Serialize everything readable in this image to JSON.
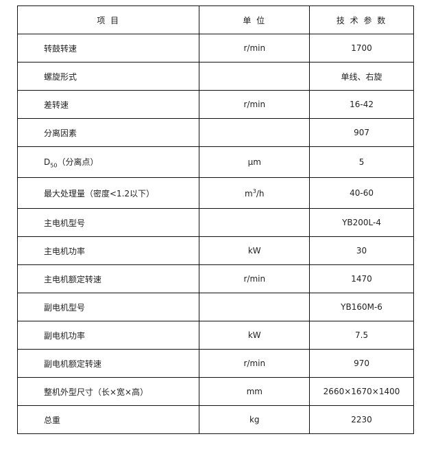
{
  "header": {
    "item": "项    目",
    "unit": "单  位",
    "param": "技 术  参 数"
  },
  "rows": [
    {
      "item": "转鼓转速",
      "unit": "r/min",
      "value": "1700"
    },
    {
      "item": "螺旋形式",
      "unit": "",
      "value": "单线、右旋"
    },
    {
      "item": "差转速",
      "unit": "r/min",
      "value": "16-42"
    },
    {
      "item": "分离因素",
      "unit": "",
      "value": "907"
    },
    {
      "item_main": "D",
      "item_sub": "50",
      "item_rest": "（分离点）",
      "unit": "μm",
      "value": "5"
    },
    {
      "item": "最大处理量（密度<1.2以下）",
      "unit_main": "m",
      "unit_sup": "3",
      "unit_rest": "/h",
      "value": "40-60"
    },
    {
      "item": "主电机型号",
      "unit": "",
      "value": "YB200L-4"
    },
    {
      "item": "主电机功率",
      "unit": "kW",
      "value": "30"
    },
    {
      "item": "主电机额定转速",
      "unit": "r/min",
      "value": "1470"
    },
    {
      "item": "副电机型号",
      "unit": "",
      "value": "YB160M-6"
    },
    {
      "item": "副电机功率",
      "unit": "kW",
      "value": "7.5"
    },
    {
      "item": "副电机额定转速",
      "unit": "r/min",
      "value": "970"
    },
    {
      "item": "整机外型尺寸（长×宽×高）",
      "unit": "mm",
      "value": "2660×1670×1400"
    },
    {
      "item": "总重",
      "unit": "kg",
      "value": "2230"
    }
  ]
}
